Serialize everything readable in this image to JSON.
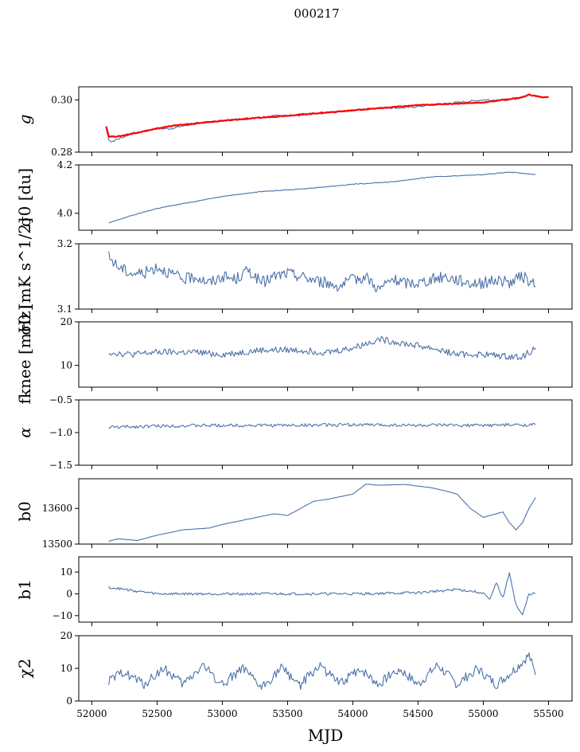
{
  "figure": {
    "title": "000217",
    "xlabel": "MJD",
    "xlim": [
      51900,
      55680
    ],
    "xticks": [
      52000,
      52500,
      53000,
      53500,
      54000,
      54500,
      55000,
      55500
    ],
    "colors": {
      "series": "#4c72a8",
      "overlay": "#ff0000",
      "axis": "#000000"
    }
  },
  "chart_data": [
    {
      "type": "line",
      "ylabel": "g",
      "ylim": [
        0.28,
        0.305
      ],
      "yticks": [
        0.28,
        0.3
      ],
      "ytick_labels": [
        "0.28",
        "0.30"
      ],
      "series": [
        {
          "x": [
            52110,
            52130,
            52150,
            52200,
            52300,
            52400,
            52500,
            52600,
            52800,
            53000,
            53200,
            53400,
            53600,
            53800,
            54000,
            54200,
            54400,
            54600,
            54800,
            55000,
            55200,
            55300,
            55350,
            55400,
            55430
          ],
          "y": [
            0.289,
            0.285,
            0.284,
            0.285,
            0.287,
            0.288,
            0.289,
            0.289,
            0.291,
            0.292,
            0.293,
            0.294,
            0.294,
            0.295,
            0.296,
            0.297,
            0.297,
            0.298,
            0.299,
            0.3,
            0.3,
            0.301,
            0.302,
            0.302,
            0.301
          ]
        },
        {
          "x": [
            52110,
            52130,
            52200,
            52400,
            52600,
            52800,
            53000,
            53500,
            54000,
            54500,
            55000,
            55300,
            55350,
            55450,
            55500
          ],
          "y": [
            0.29,
            0.286,
            0.286,
            0.288,
            0.29,
            0.291,
            0.292,
            0.294,
            0.296,
            0.298,
            0.299,
            0.301,
            0.302,
            0.301,
            0.301
          ]
        }
      ]
    },
    {
      "type": "line",
      "ylabel": "σ0 [du]",
      "ylim": [
        3.93,
        4.2
      ],
      "yticks": [
        4.0,
        4.2
      ],
      "ytick_labels": [
        "4.0",
        "4.2"
      ],
      "series": [
        {
          "x": [
            52130,
            52300,
            52500,
            52800,
            53000,
            53300,
            53600,
            54000,
            54300,
            54600,
            55000,
            55200,
            55400
          ],
          "y": [
            3.96,
            3.99,
            4.02,
            4.05,
            4.07,
            4.09,
            4.1,
            4.12,
            4.13,
            4.15,
            4.16,
            4.17,
            4.16
          ]
        }
      ]
    },
    {
      "type": "line",
      "ylabel": "σ0 [mK s^1/2]",
      "ylim": [
        3.1,
        3.2
      ],
      "yticks": [
        3.1,
        3.2
      ],
      "ytick_labels": [
        "3.1",
        "3.2"
      ],
      "series": [
        {
          "x": [
            52130,
            52200,
            52300,
            52400,
            52500,
            52600,
            52700,
            52800,
            52900,
            53000,
            53100,
            53200,
            53300,
            53400,
            53500,
            53600,
            53700,
            53800,
            53900,
            54000,
            54100,
            54200,
            54300,
            54400,
            54500,
            54600,
            54700,
            54800,
            54900,
            55000,
            55100,
            55200,
            55300,
            55400
          ],
          "y": [
            3.18,
            3.165,
            3.155,
            3.155,
            3.165,
            3.155,
            3.145,
            3.15,
            3.14,
            3.15,
            3.145,
            3.16,
            3.14,
            3.15,
            3.155,
            3.15,
            3.145,
            3.14,
            3.135,
            3.145,
            3.15,
            3.13,
            3.145,
            3.14,
            3.14,
            3.145,
            3.15,
            3.145,
            3.14,
            3.14,
            3.145,
            3.14,
            3.15,
            3.135
          ]
        }
      ]
    },
    {
      "type": "line",
      "ylabel": "fknee [mHz]",
      "ylim": [
        5,
        20
      ],
      "yticks": [
        10,
        20
      ],
      "ytick_labels": [
        "10",
        "20"
      ],
      "series": [
        {
          "x": [
            52130,
            52300,
            52500,
            52800,
            53000,
            53300,
            53600,
            53800,
            54000,
            54200,
            54400,
            54600,
            54800,
            55000,
            55200,
            55300,
            55400
          ],
          "y": [
            13,
            12.5,
            13,
            13,
            12.5,
            13.5,
            13.5,
            13,
            14,
            16,
            15,
            14,
            12.5,
            12.5,
            12,
            12,
            14
          ]
        }
      ]
    },
    {
      "type": "line",
      "ylabel": "α",
      "ylim": [
        -1.5,
        -0.5
      ],
      "yticks": [
        -1.5,
        -1.0,
        -0.5
      ],
      "ytick_labels": [
        "−1.5",
        "−1.0",
        "−0.5"
      ],
      "series": [
        {
          "x": [
            52130,
            52500,
            53000,
            53500,
            54000,
            54500,
            55000,
            55400
          ],
          "y": [
            -0.92,
            -0.9,
            -0.89,
            -0.89,
            -0.88,
            -0.89,
            -0.89,
            -0.88
          ]
        }
      ]
    },
    {
      "type": "line",
      "ylabel": "b0",
      "ylim": [
        13500,
        13683
      ],
      "yticks": [
        13500,
        13600
      ],
      "ytick_labels": [
        "13500",
        "13600"
      ],
      "series": [
        {
          "x": [
            52130,
            52200,
            52350,
            52500,
            52700,
            52900,
            53000,
            53200,
            53400,
            53500,
            53600,
            53700,
            53800,
            54000,
            54100,
            54200,
            54400,
            54600,
            54700,
            54800,
            54900,
            55000,
            55100,
            55150,
            55200,
            55250,
            55300,
            55350,
            55400
          ],
          "y": [
            13508,
            13515,
            13510,
            13525,
            13540,
            13545,
            13555,
            13570,
            13585,
            13580,
            13600,
            13620,
            13625,
            13640,
            13668,
            13665,
            13667,
            13658,
            13650,
            13640,
            13600,
            13575,
            13585,
            13590,
            13560,
            13540,
            13560,
            13600,
            13630
          ]
        }
      ]
    },
    {
      "type": "line",
      "ylabel": "b1",
      "ylim": [
        -13,
        17
      ],
      "yticks": [
        -10,
        0,
        10
      ],
      "ytick_labels": [
        "−10",
        "0",
        "10"
      ],
      "series": [
        {
          "x": [
            52130,
            52500,
            53000,
            53500,
            54000,
            54500,
            54800,
            55000,
            55050,
            55100,
            55150,
            55200,
            55250,
            55300,
            55350,
            55400
          ],
          "y": [
            3,
            0,
            0,
            0,
            0,
            0.5,
            2,
            0.5,
            -3,
            5,
            -2,
            10,
            -5,
            -10,
            0,
            0
          ]
        }
      ]
    },
    {
      "type": "line",
      "ylabel": "χ2",
      "ylim": [
        0,
        20
      ],
      "yticks": [
        0,
        10,
        20
      ],
      "ytick_labels": [
        "0",
        "10",
        "20"
      ],
      "series": [
        {
          "x": [
            52130,
            52250,
            52400,
            52550,
            52700,
            52850,
            53000,
            53150,
            53300,
            53450,
            53600,
            53750,
            53900,
            54050,
            54200,
            54350,
            54500,
            54650,
            54800,
            54950,
            55100,
            55250,
            55350,
            55400
          ],
          "y": [
            6,
            9,
            5,
            10,
            5,
            11,
            5,
            10,
            4,
            10,
            5,
            11,
            5,
            10,
            5,
            10,
            5,
            11,
            5,
            10,
            5,
            10,
            14,
            8
          ]
        }
      ]
    }
  ]
}
